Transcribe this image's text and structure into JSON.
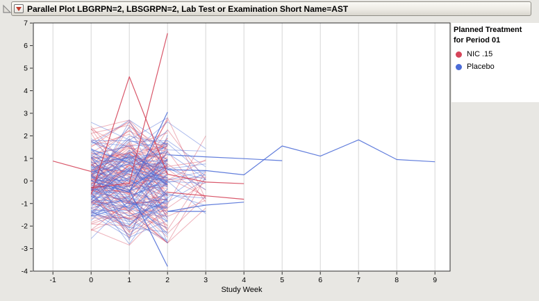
{
  "outline": {
    "title": "Parallel Plot LBGRPN=2, LBSGRPN=2, Lab Test or Examination Short Name=AST"
  },
  "legend": {
    "title_line1": "Planned Treatment",
    "title_line2": "for Period 01",
    "items": [
      {
        "label": "NIC .15",
        "color": "#d6455a"
      },
      {
        "label": "Placebo",
        "color": "#4b6cd8"
      }
    ]
  },
  "chart_data": {
    "type": "line",
    "variant": "parallel-plot",
    "title": "Parallel Plot LBGRPN=2, LBSGRPN=2, Lab Test or Examination Short Name=AST",
    "xlabel": "Study Week",
    "ylabel": "",
    "x_ticks": [
      -1,
      0,
      1,
      2,
      3,
      4,
      5,
      6,
      7,
      8,
      9
    ],
    "y_ticks": [
      -4,
      -3,
      -2,
      -1,
      0,
      1,
      2,
      3,
      4,
      5,
      6,
      7
    ],
    "ylim": [
      -4,
      7
    ],
    "grid": "vertical-only",
    "legend_position": "right",
    "groups": {
      "NIC .15": {
        "line_color": "rgba(214,69,90,0.42)",
        "highlight_color": "rgba(210,58,80,0.85)"
      },
      "Placebo": {
        "line_color": "rgba(77,108,216,0.46)",
        "highlight_color": "rgba(70,103,214,0.85)"
      }
    },
    "highlight_series": [
      {
        "group": "NIC .15",
        "x": [
          -1,
          0
        ],
        "y": [
          0.88,
          0.42
        ]
      },
      {
        "group": "NIC .15",
        "x": [
          0,
          1,
          2
        ],
        "y": [
          -0.6,
          4.62,
          0.3
        ]
      },
      {
        "group": "NIC .15",
        "x": [
          0,
          1,
          2
        ],
        "y": [
          -0.3,
          -0.1,
          6.55
        ]
      },
      {
        "group": "Placebo",
        "x": [
          0,
          1,
          2
        ],
        "y": [
          0.0,
          -0.5,
          3.05
        ]
      },
      {
        "group": "Placebo",
        "x": [
          1,
          2
        ],
        "y": [
          -0.4,
          -3.79
        ]
      },
      {
        "group": "Placebo",
        "x": [
          2,
          3,
          4,
          5
        ],
        "y": [
          1.16,
          1.07,
          0.99,
          0.9
        ]
      },
      {
        "group": "Placebo",
        "x": [
          2,
          3,
          4,
          5,
          6,
          7,
          8,
          9
        ],
        "y": [
          0.5,
          0.46,
          0.27,
          1.55,
          1.1,
          1.82,
          0.95,
          0.85
        ]
      },
      {
        "group": "NIC .15",
        "x": [
          2,
          3,
          4
        ],
        "y": [
          -0.5,
          -0.66,
          -0.81
        ]
      },
      {
        "group": "NIC .15",
        "x": [
          2,
          3,
          4
        ],
        "y": [
          0.3,
          -0.05,
          -0.12
        ]
      },
      {
        "group": "Placebo",
        "x": [
          2,
          3,
          4
        ],
        "y": [
          -1.35,
          -1.07,
          -0.94
        ]
      },
      {
        "group": "Placebo",
        "x": [
          2,
          3
        ],
        "y": [
          -1.35,
          -1.35
        ]
      }
    ],
    "bundle": {
      "note": "~190 overlapping subject lines (weeks 0-2) too dense to digitize individually; rendered as a seeded procedural approximation",
      "weeks": [
        0,
        1,
        2
      ],
      "per_group_count": 92,
      "week3_extension_per_group": 16,
      "core_value_range": [
        -3.0,
        2.8
      ],
      "week3_value_range": [
        -1.45,
        2.3
      ],
      "seed": 11
    }
  }
}
